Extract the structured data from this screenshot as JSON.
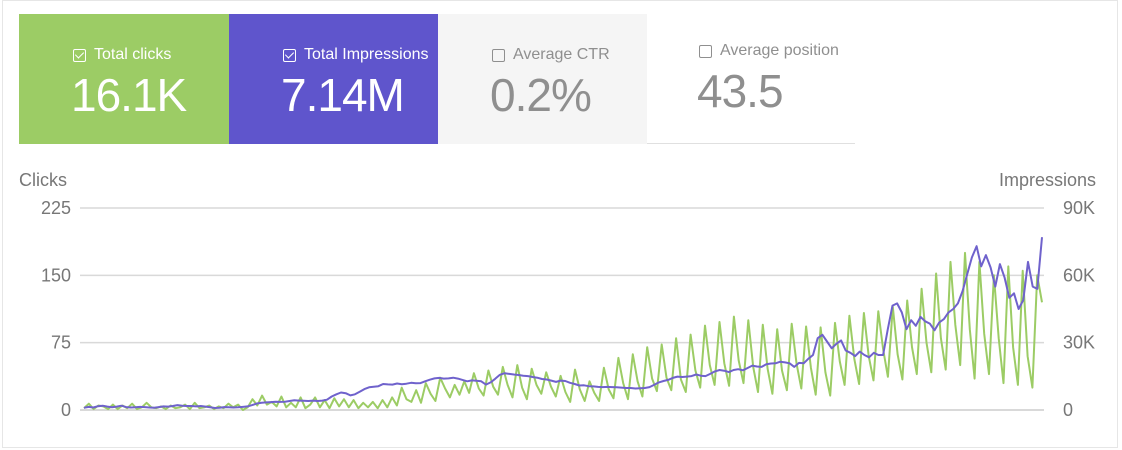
{
  "metrics": [
    {
      "label": "Total clicks",
      "value": "16.1K",
      "checked": true,
      "color": "#9ccc65"
    },
    {
      "label": "Total Impressions",
      "value": "7.14M",
      "checked": true,
      "color": "#5f55cc"
    },
    {
      "label": "Average CTR",
      "value": "0.2%",
      "checked": false,
      "color": "#f5f5f5"
    },
    {
      "label": "Average position",
      "value": "43.5",
      "checked": false,
      "color": "#ffffff"
    }
  ],
  "chart_data": {
    "type": "line",
    "left_axis": {
      "label": "Clicks",
      "ticks": [
        "225",
        "150",
        "75",
        "0"
      ],
      "ylim": [
        0,
        225
      ]
    },
    "right_axis": {
      "label": "Impressions",
      "ticks": [
        "90K",
        "60K",
        "30K",
        "0"
      ],
      "ylim": [
        0,
        90000
      ]
    },
    "x_count": 200,
    "series": [
      {
        "name": "Clicks",
        "axis": "left",
        "color": "#9ccc65",
        "values": [
          2,
          7,
          1,
          5,
          4,
          1,
          6,
          1,
          5,
          2,
          7,
          1,
          3,
          8,
          3,
          2,
          4,
          1,
          5,
          2,
          3,
          6,
          1,
          8,
          2,
          3,
          5,
          1,
          4,
          2,
          7,
          3,
          6,
          0,
          3,
          12,
          5,
          16,
          6,
          9,
          4,
          15,
          3,
          8,
          3,
          14,
          2,
          6,
          14,
          3,
          11,
          2,
          13,
          4,
          12,
          3,
          11,
          2,
          8,
          3,
          9,
          2,
          11,
          3,
          14,
          5,
          25,
          12,
          9,
          22,
          8,
          30,
          18,
          10,
          36,
          24,
          14,
          28,
          17,
          32,
          19,
          41,
          24,
          16,
          44,
          26,
          17,
          48,
          28,
          14,
          50,
          25,
          12,
          46,
          28,
          18,
          42,
          26,
          15,
          38,
          20,
          9,
          45,
          23,
          10,
          32,
          19,
          10,
          47,
          23,
          13,
          58,
          30,
          12,
          62,
          32,
          15,
          70,
          35,
          21,
          73,
          36,
          22,
          80,
          34,
          20,
          84,
          44,
          25,
          94,
          50,
          28,
          98,
          52,
          27,
          104,
          55,
          30,
          100,
          48,
          20,
          95,
          46,
          18,
          90,
          44,
          22,
          96,
          52,
          24,
          93,
          47,
          17,
          92,
          42,
          16,
          97,
          54,
          28,
          105,
          57,
          29,
          108,
          60,
          33,
          110,
          68,
          37,
          115,
          62,
          34,
          122,
          70,
          40,
          135,
          75,
          42,
          152,
          80,
          45,
          165,
          95,
          50,
          175,
          90,
          35,
          165,
          85,
          40,
          150,
          80,
          30,
          160,
          70,
          28,
          155,
          60,
          25,
          150,
          120
        ]
      },
      {
        "name": "Impressions",
        "axis": "right",
        "color": "#6f62cc",
        "values": [
          1000,
          1400,
          1100,
          1700,
          1900,
          1500,
          1200,
          1500,
          1900,
          1300,
          1100,
          1200,
          1400,
          1300,
          1100,
          1000,
          1300,
          1600,
          1500,
          1800,
          2200,
          1900,
          1800,
          1800,
          1600,
          1800,
          1500,
          1200,
          900,
          1000,
          1300,
          1200,
          1100,
          1200,
          1400,
          1600,
          2200,
          2900,
          3200,
          3400,
          3500,
          3700,
          3600,
          3700,
          4000,
          4300,
          4200,
          4100,
          4000,
          4200,
          4000,
          4200,
          4600,
          6000,
          7000,
          7800,
          7500,
          6500,
          7000,
          8100,
          9300,
          10100,
          10400,
          10600,
          11600,
          11400,
          11300,
          11800,
          11500,
          11700,
          12100,
          11900,
          12000,
          12800,
          13500,
          14100,
          14300,
          14000,
          14100,
          14400,
          14000,
          13400,
          12800,
          13200,
          13000,
          12800,
          11300,
          12300,
          13900,
          15700,
          16400,
          16100,
          15800,
          15600,
          15300,
          15100,
          14700,
          14400,
          13800,
          13600,
          13100,
          12500,
          13100,
          12900,
          12100,
          11600,
          10900,
          11000,
          10600,
          10500,
          10300,
          10200,
          10300,
          10200,
          10100,
          10000,
          9800,
          9800,
          9600,
          9700,
          9800,
          10200,
          11200,
          12300,
          12900,
          13400,
          14300,
          14900,
          14700,
          14900,
          15100,
          15800,
          15300,
          15100,
          16100,
          17200,
          17800,
          17500,
          16900,
          17800,
          18200,
          17700,
          18700,
          19800,
          19400,
          19200,
          20400,
          20700,
          20800,
          21500,
          21200,
          20800,
          19200,
          21000,
          20800,
          22800,
          24500,
          32000,
          33500,
          30500,
          27500,
          29500,
          31000,
          26500,
          25500,
          24000,
          26000,
          24500,
          23500,
          25500,
          24500,
          24500,
          36000,
          46500,
          47500,
          43500,
          36000,
          40000,
          37500,
          41500,
          39500,
          38500,
          35500,
          39000,
          40500,
          43500,
          45000,
          47500,
          53000,
          60500,
          68000,
          73000,
          64000,
          69000,
          63500,
          55000,
          65000,
          59000,
          50000,
          52000,
          45000,
          49000,
          66000,
          55000,
          54000,
          77000
        ]
      }
    ]
  }
}
